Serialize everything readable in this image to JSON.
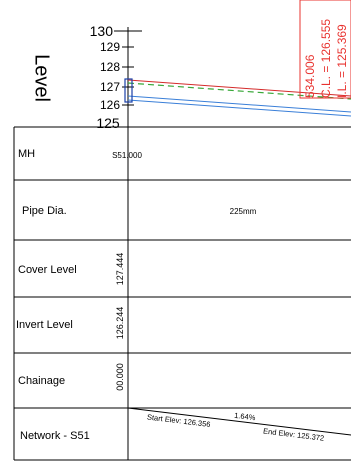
{
  "axis": {
    "title": "Level",
    "ticks": [
      "130",
      "129",
      "128",
      "127",
      "126",
      "125"
    ]
  },
  "pipe": {
    "id": "S51",
    "start_mh": "S51.000",
    "gradient": "1.64%",
    "start_label": "Start Elev: 126.356",
    "end_label": "End Elev: 125.372"
  },
  "manhole_callout": {
    "chainage_label": "534.006",
    "cover_label": "C.L. = 126.555",
    "invert_label": "I.L. = 125.369"
  },
  "table": {
    "rows": [
      {
        "label": "MH",
        "value": "S51.000"
      },
      {
        "label": "Pipe Dia.",
        "value": "225mm"
      },
      {
        "label": "Cover Level",
        "value": "127.444"
      },
      {
        "label": "Invert Level",
        "value": "126.244"
      },
      {
        "label": "Chainage",
        "value": "00.000"
      },
      {
        "label": "Network - S51",
        "value": ""
      }
    ]
  },
  "colors": {
    "ground_line": "#d42b2b",
    "pipe_lines": "#3a7fd8",
    "design_line": "#3aa83a",
    "callout": "#e8332f"
  }
}
